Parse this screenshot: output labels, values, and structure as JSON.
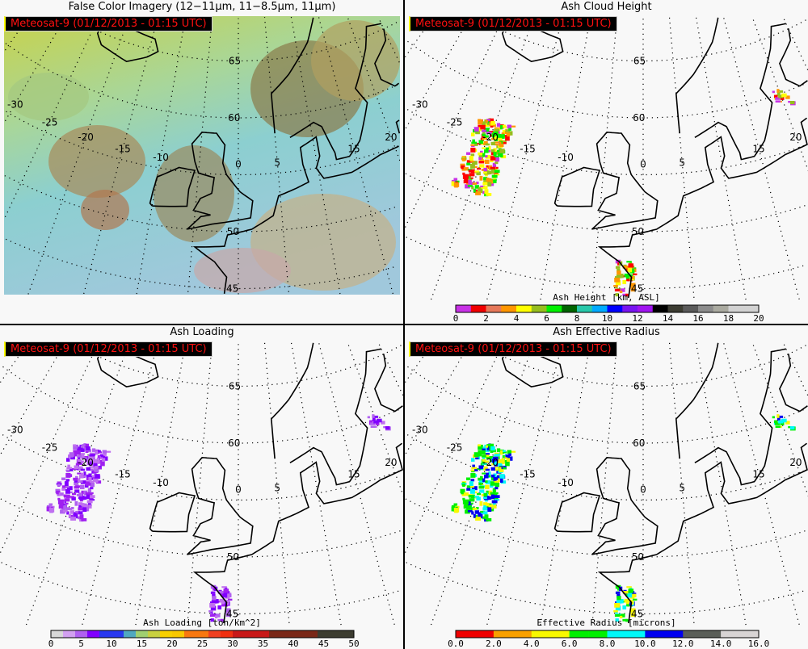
{
  "panels": [
    {
      "title": "False Color Imagery (12−11μm, 11−8.5μm, 11μm)",
      "badge": "Meteosat-9  (01/12/2013 - 01:15 UTC)",
      "kind": "false-color",
      "colorbar": null
    },
    {
      "title": "Ash Cloud Height",
      "badge": "Meteosat-9  (01/12/2013 - 01:15 UTC)",
      "kind": "height",
      "colorbar": {
        "label": "Ash Height [km, ASL]",
        "min": 0,
        "max": 20,
        "ticks": [
          "0",
          "2",
          "4",
          "6",
          "8",
          "10",
          "12",
          "14",
          "16",
          "18",
          "20"
        ],
        "colors": [
          "#c832e6",
          "#f00000",
          "#e6785a",
          "#ff9600",
          "#ffff00",
          "#96be1e",
          "#00f000",
          "#006400",
          "#28c8aa",
          "#00aaff",
          "#0000ff",
          "#7814f0",
          "#a014f0",
          "#000000",
          "#3c3c32",
          "#5a5a5a",
          "#8c8c8c",
          "#aaaaa0",
          "#d2d2d2",
          "#d2d2d2"
        ]
      }
    },
    {
      "title": "Ash Loading",
      "badge": "Meteosat-9  (01/12/2013 - 01:15 UTC)",
      "kind": "loading",
      "colorbar": {
        "label": "Ash Loading [ton/km^2]",
        "min": 0,
        "max": 50,
        "ticks": [
          "0",
          "5",
          "10",
          "15",
          "20",
          "25",
          "30",
          "35",
          "40",
          "45",
          "50"
        ],
        "colors": [
          "#d7d7d7",
          "#d2a0f0",
          "#b060f0",
          "#8000ff",
          "#2838f0",
          "#2838f0",
          "#50a8c0",
          "#a0d070",
          "#c8d040",
          "#f8d000",
          "#f8c800",
          "#f87810",
          "#f87810",
          "#f04020",
          "#f03010",
          "#c81818",
          "#c81818",
          "#c81818",
          "#7a2818",
          "#7a2818",
          "#7a2818",
          "#7a2818",
          "#3c3c30",
          "#3c3c30",
          "#3c3c30"
        ]
      }
    },
    {
      "title": "Ash Effective Radius",
      "badge": "Meteosat-9  (01/12/2013 - 01:15 UTC)",
      "kind": "radius",
      "colorbar": {
        "label": "Effective Radius [microns]",
        "min": 0,
        "max": 16,
        "ticks": [
          "0.0",
          "2.0",
          "4.0",
          "6.0",
          "8.0",
          "10.0",
          "12.0",
          "14.0",
          "16.0"
        ],
        "colors": [
          "#f00000",
          "#f00000",
          "#f8a000",
          "#f8a000",
          "#f8f800",
          "#f8f800",
          "#00f000",
          "#00f000",
          "#00f8f8",
          "#00f8f8",
          "#0000f0",
          "#0000f0",
          "#5a5e58",
          "#5a5e58",
          "#d8d4d4",
          "#d8d4d4"
        ]
      }
    }
  ],
  "map": {
    "lat_labels": [
      "65",
      "60",
      "50",
      "45"
    ],
    "lon_labels": [
      "-30",
      "-25",
      "-20",
      "-15",
      "-10",
      "0",
      "5",
      "15",
      "20"
    ]
  }
}
